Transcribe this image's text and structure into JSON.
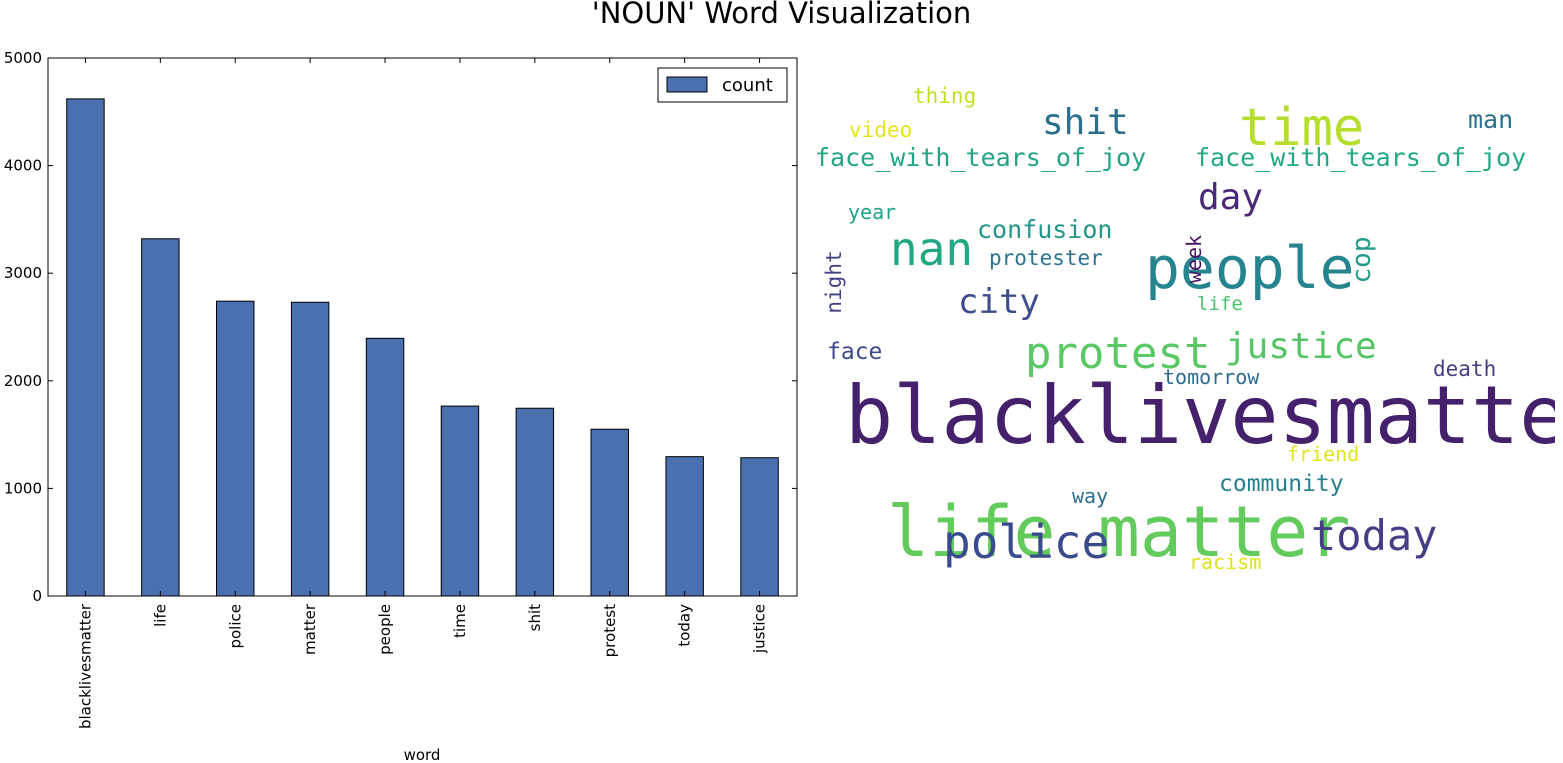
{
  "figure": {
    "title": "'NOUN' Word Visualization"
  },
  "chart_data": [
    {
      "type": "bar",
      "title": "",
      "xlabel": "word",
      "ylabel": "",
      "categories": [
        "blacklivesmatter",
        "life",
        "police",
        "matter",
        "people",
        "time",
        "shit",
        "protest",
        "today",
        "justice"
      ],
      "series": [
        {
          "name": "count",
          "values": [
            4620,
            3320,
            2740,
            2730,
            2395,
            1765,
            1745,
            1550,
            1295,
            1285
          ],
          "color": "#4a70b0"
        }
      ],
      "ylim": [
        0,
        5000
      ],
      "yticks": [
        0,
        1000,
        2000,
        3000,
        4000,
        5000
      ],
      "legend": "top-right",
      "grid": false
    },
    {
      "type": "wordcloud",
      "words": [
        {
          "text": "blacklivesmatter",
          "weight": 100,
          "color": "#46216b",
          "orientation": "horizontal"
        },
        {
          "text": "life matter",
          "weight": 80,
          "color": "#62cb5c",
          "orientation": "horizontal"
        },
        {
          "text": "people",
          "weight": 75,
          "color": "#26848f",
          "orientation": "horizontal"
        },
        {
          "text": "time",
          "weight": 68,
          "color": "#b5dd2b",
          "orientation": "horizontal"
        },
        {
          "text": "police",
          "weight": 65,
          "color": "#3a4b8d",
          "orientation": "horizontal"
        },
        {
          "text": "nan",
          "weight": 62,
          "color": "#22a783",
          "orientation": "horizontal"
        },
        {
          "text": "protest",
          "weight": 60,
          "color": "#5ac865",
          "orientation": "horizontal"
        },
        {
          "text": "today",
          "weight": 58,
          "color": "#433e86",
          "orientation": "horizontal"
        },
        {
          "text": "shit",
          "weight": 52,
          "color": "#2a708e",
          "orientation": "horizontal"
        },
        {
          "text": "justice",
          "weight": 52,
          "color": "#55c567",
          "orientation": "horizontal"
        },
        {
          "text": "day",
          "weight": 50,
          "color": "#4a2a78",
          "orientation": "horizontal"
        },
        {
          "text": "city",
          "weight": 46,
          "color": "#3e4d8a",
          "orientation": "horizontal"
        },
        {
          "text": "face_with_tears_of_joy",
          "weight": 40,
          "color": "#24a386",
          "orientation": "horizontal"
        },
        {
          "text": "face_with_tears_of_joy",
          "weight": 40,
          "color": "#22a884",
          "orientation": "horizontal"
        },
        {
          "text": "confusion",
          "weight": 38,
          "color": "#22968b",
          "orientation": "horizontal"
        },
        {
          "text": "cop",
          "weight": 36,
          "color": "#239b8a",
          "orientation": "vertical"
        },
        {
          "text": "man",
          "weight": 33,
          "color": "#2b718e",
          "orientation": "horizontal"
        },
        {
          "text": "community",
          "weight": 32,
          "color": "#27808e",
          "orientation": "horizontal"
        },
        {
          "text": "face",
          "weight": 31,
          "color": "#3c4a8b",
          "orientation": "horizontal"
        },
        {
          "text": "death",
          "weight": 30,
          "color": "#433d84",
          "orientation": "horizontal"
        },
        {
          "text": "protester",
          "weight": 30,
          "color": "#2c728e",
          "orientation": "horizontal"
        },
        {
          "text": "tomorrow",
          "weight": 29,
          "color": "#2f6b8e",
          "orientation": "horizontal"
        },
        {
          "text": "friend",
          "weight": 29,
          "color": "#e2e418",
          "orientation": "horizontal"
        },
        {
          "text": "racism",
          "weight": 29,
          "color": "#dde318",
          "orientation": "horizontal"
        },
        {
          "text": "night",
          "weight": 28,
          "color": "#424086",
          "orientation": "vertical"
        },
        {
          "text": "week",
          "weight": 28,
          "color": "#471365",
          "orientation": "vertical"
        },
        {
          "text": "thing",
          "weight": 27,
          "color": "#c2df23",
          "orientation": "horizontal"
        },
        {
          "text": "video",
          "weight": 27,
          "color": "#e7e419",
          "orientation": "horizontal"
        },
        {
          "text": "year",
          "weight": 27,
          "color": "#1fa287",
          "orientation": "horizontal"
        },
        {
          "text": "way",
          "weight": 27,
          "color": "#2d708e",
          "orientation": "horizontal"
        },
        {
          "text": "life",
          "weight": 25,
          "color": "#4ac16d",
          "orientation": "horizontal"
        }
      ]
    }
  ]
}
